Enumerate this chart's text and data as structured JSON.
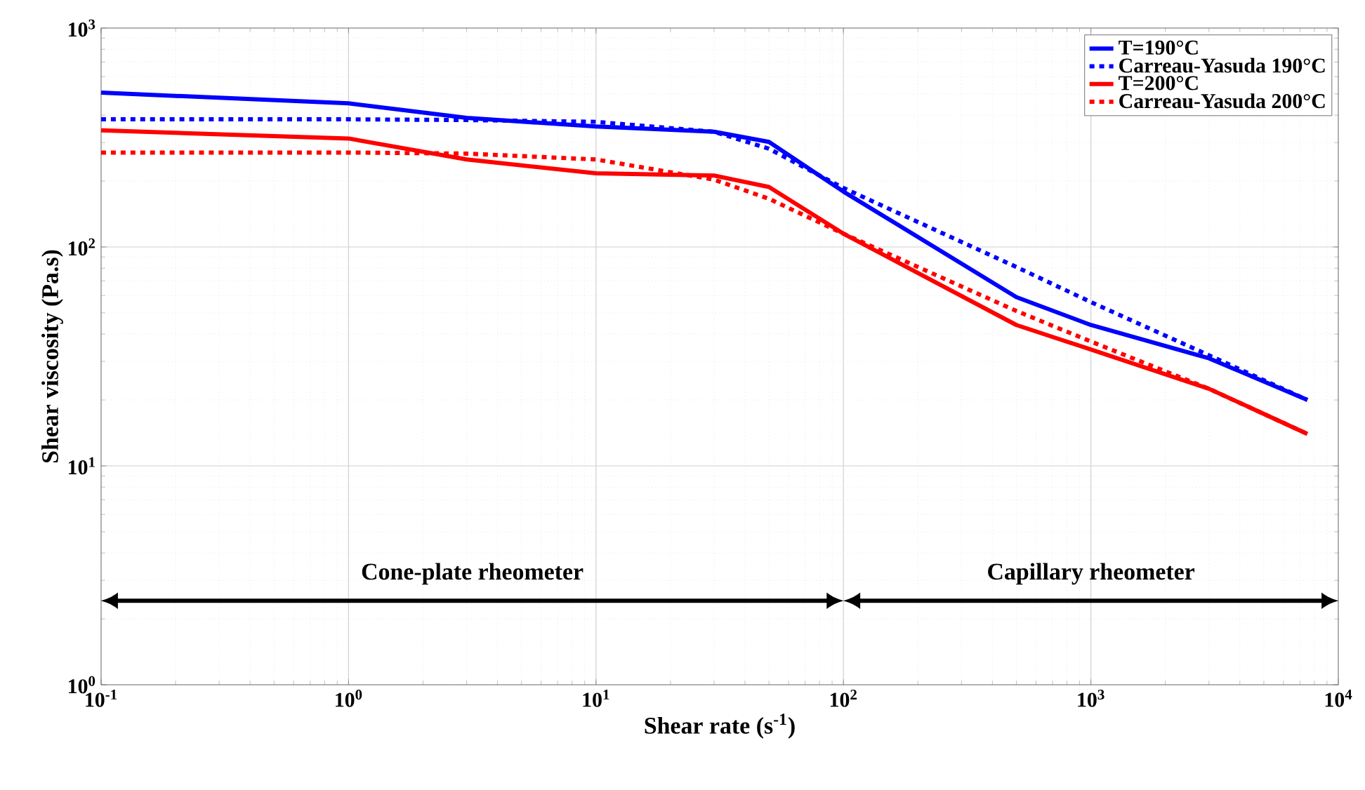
{
  "chart_data": {
    "type": "line",
    "xlabel": "Shear rate (s$^{-1}$)",
    "ylabel": "Shear viscosity (Pa.s)",
    "log": "xy",
    "grid": true,
    "legend": "top right",
    "marker": "none",
    "xlim": [
      0.1,
      10000
    ],
    "ylim": [
      1,
      1000
    ],
    "xticks": [
      {
        "value": 0.1,
        "label": "10$^{-1}$"
      },
      {
        "value": 1,
        "label": "10$^{0}$"
      },
      {
        "value": 10,
        "label": "10$^{1}$"
      },
      {
        "value": 100,
        "label": "10$^{2}$"
      },
      {
        "value": 1000,
        "label": "10$^{3}$"
      },
      {
        "value": 10000,
        "label": "10$^{4}$"
      }
    ],
    "yticks": [
      {
        "value": 1,
        "label": "10$^{0}$"
      },
      {
        "value": 10,
        "label": "10$^{1}$"
      },
      {
        "value": 100,
        "label": "10$^{2}$"
      },
      {
        "value": 1000,
        "label": "10$^{3}$"
      }
    ],
    "series": [
      {
        "name": "T=190°C",
        "color": "#0000ff",
        "line_style": "solid",
        "x": [
          0.1,
          1,
          3,
          10,
          30,
          50,
          100,
          500,
          1000,
          3000,
          7500
        ],
        "values": [
          507,
          453,
          389,
          355,
          336,
          302,
          179,
          59,
          44,
          31,
          20
        ]
      },
      {
        "name": "Carreau-Yasuda 190°C",
        "color": "#0000ff",
        "line_style": "dotted",
        "x": [
          0.1,
          1,
          3,
          10,
          30,
          50,
          100,
          500,
          1000,
          3000,
          7500
        ],
        "values": [
          383,
          383,
          380,
          373,
          336,
          281,
          186,
          81,
          56,
          32,
          20
        ]
      },
      {
        "name": "T=200°C",
        "color": "#ff0000",
        "line_style": "solid",
        "x": [
          0.1,
          1,
          3,
          10,
          30,
          50,
          100,
          500,
          1000,
          3000,
          7500
        ],
        "values": [
          341,
          313,
          251,
          217,
          212,
          188,
          115,
          44,
          34,
          22.5,
          14
        ]
      },
      {
        "name": "Carreau-Yasuda 200°C",
        "color": "#ff0000",
        "line_style": "dotted",
        "x": [
          0.1,
          1,
          3,
          10,
          30,
          50,
          100,
          500,
          1000,
          3000,
          7500
        ],
        "values": [
          270,
          270,
          267,
          251,
          203,
          166,
          115,
          51,
          37,
          22.5,
          14
        ]
      }
    ],
    "annotations": [
      "Cone-plate rheometer",
      "Capillary rheometer"
    ]
  }
}
